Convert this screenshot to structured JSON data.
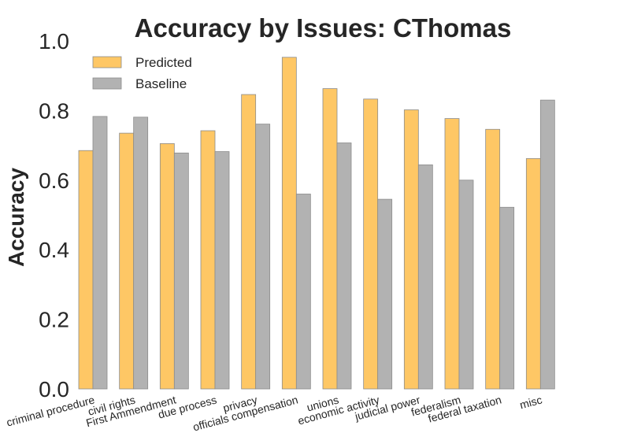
{
  "chart_data": {
    "type": "bar",
    "title": "Accuracy by Issues: CThomas",
    "xlabel": "",
    "ylabel": "Accuracy",
    "ylim": [
      0,
      1.0
    ],
    "yticks": [
      "0.0",
      "0.2",
      "0.4",
      "0.6",
      "0.8",
      "1.0"
    ],
    "grid": false,
    "legend_position": "top-left",
    "categories": [
      "criminal procedure",
      "civil rights",
      "First Ammendment",
      "due process",
      "privacy",
      "officials compensation",
      "unions",
      "economic activity",
      "judicial power",
      "federalism",
      "federal taxation",
      "misc"
    ],
    "series": [
      {
        "name": "Predicted",
        "color": "#fec765",
        "values": [
          0.685,
          0.735,
          0.705,
          0.742,
          0.846,
          0.953,
          0.863,
          0.833,
          0.802,
          0.777,
          0.746,
          0.662
        ]
      },
      {
        "name": "Baseline",
        "color": "#b2b2b2",
        "values": [
          0.783,
          0.781,
          0.678,
          0.682,
          0.761,
          0.56,
          0.707,
          0.545,
          0.644,
          0.6,
          0.522,
          0.83
        ]
      }
    ]
  }
}
